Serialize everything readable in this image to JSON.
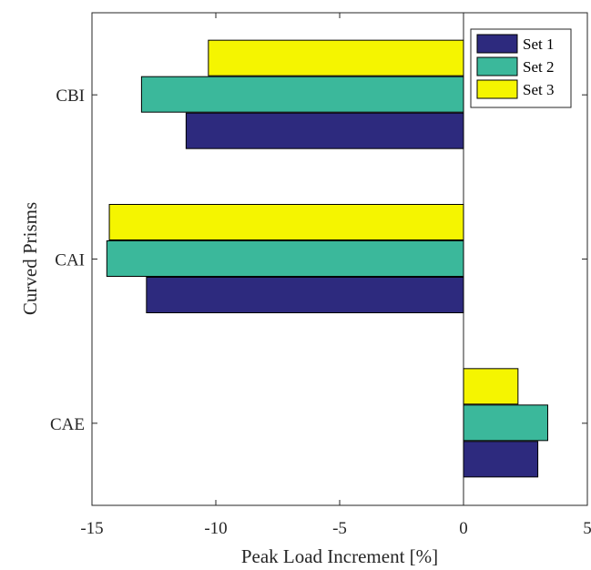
{
  "chart_data": {
    "type": "bar",
    "orientation": "horizontal",
    "categories": [
      "CAE",
      "CAI",
      "CBI"
    ],
    "series": [
      {
        "name": "Set 1",
        "color": "#2d2a7e",
        "values": [
          3.0,
          -12.8,
          -11.2
        ]
      },
      {
        "name": "Set 2",
        "color": "#3bb89b",
        "values": [
          3.4,
          -14.4,
          -13.0
        ]
      },
      {
        "name": "Set 3",
        "color": "#f5f500",
        "values": [
          2.2,
          -14.3,
          -10.3
        ]
      }
    ],
    "xlabel": "Peak Load Increment [%]",
    "ylabel": "Curved Prisms",
    "xlim": [
      -15,
      5
    ],
    "xticks": [
      "-15",
      "-10",
      "-5",
      "0",
      "5"
    ],
    "grid": false,
    "legend_position": "top-right",
    "zero_line": true
  }
}
